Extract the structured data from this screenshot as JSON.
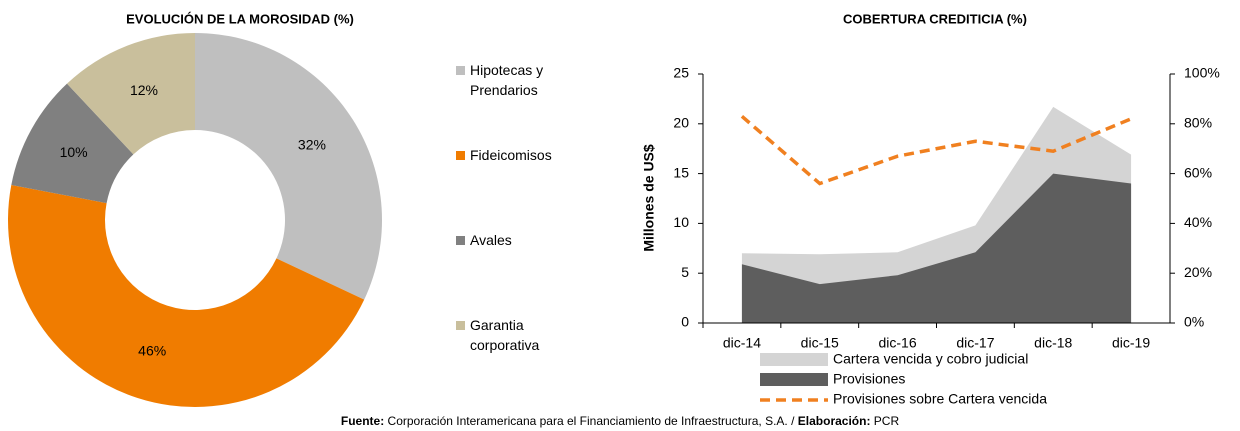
{
  "chart_data": [
    {
      "type": "donut",
      "title": "EVOLUCIÓN DE LA MOROSIDAD (%)",
      "categories": [
        "Hipotecas y Prendarios",
        "Fideicomisos",
        "Avales",
        "Garantia corporativa"
      ],
      "values": [
        32,
        46,
        10,
        12
      ],
      "value_labels": [
        "32%",
        "46%",
        "10%",
        "12%"
      ],
      "colors": [
        "#bfbfbf",
        "#f07c00",
        "#808080",
        "#c9bf9c"
      ]
    },
    {
      "type": "area",
      "title": "COBERTURA CREDITICIA (%)",
      "ylabel": "Millones de US$",
      "categories": [
        "dic-14",
        "dic-15",
        "dic-16",
        "dic-17",
        "dic-18",
        "dic-19"
      ],
      "ylim": [
        0,
        25
      ],
      "yticks": [
        0,
        5,
        10,
        15,
        20,
        25
      ],
      "y2lim": [
        0,
        100
      ],
      "y2ticks": [
        {
          "value": 0,
          "label": "0%"
        },
        {
          "value": 20,
          "label": "20%"
        },
        {
          "value": 40,
          "label": "40%"
        },
        {
          "value": 60,
          "label": "60%"
        },
        {
          "value": 80,
          "label": "80%"
        },
        {
          "value": 100,
          "label": "100%"
        }
      ],
      "series": [
        {
          "name": "Cartera vencida y cobro judicial",
          "type": "area",
          "color": "#d4d4d4",
          "values": [
            7.0,
            6.9,
            7.1,
            9.8,
            21.7,
            16.9
          ]
        },
        {
          "name": "Provisiones",
          "type": "area",
          "color": "#5e5e5e",
          "values": [
            5.9,
            3.9,
            4.8,
            7.1,
            15.0,
            14.0
          ]
        },
        {
          "name": "Provisiones sobre Cartera vencida",
          "type": "line",
          "axis": "y2",
          "color": "#f08020",
          "values": [
            83,
            56,
            67,
            73,
            69,
            82
          ]
        }
      ]
    }
  ],
  "footer": {
    "source_label": "Fuente:",
    "source": "Corporación Interamericana para el Financiamiento de Infraestructura, S.A. /",
    "credit_label": "Elaboración:",
    "credit": "PCR"
  }
}
